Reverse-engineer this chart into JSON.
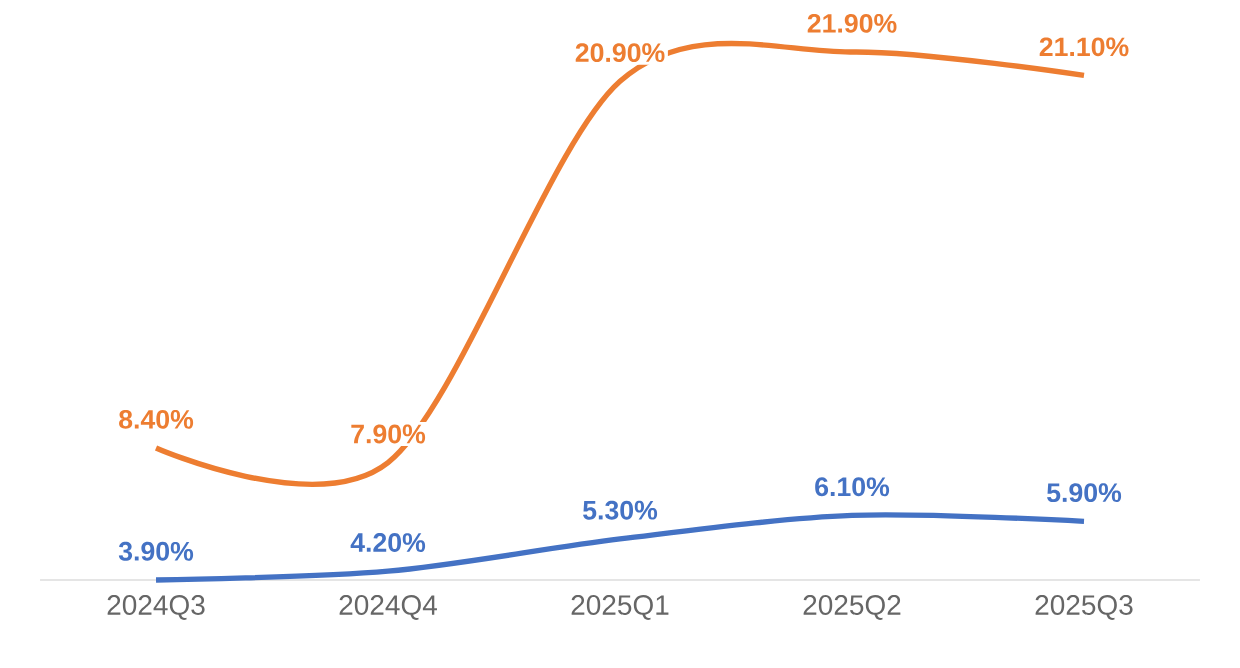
{
  "chart_data": {
    "type": "line",
    "categories": [
      "2024Q3",
      "2024Q4",
      "2025Q1",
      "2025Q2",
      "2025Q3"
    ],
    "series": [
      {
        "color": "#ed7d31",
        "values": [
          8.4,
          7.9,
          20.9,
          21.9,
          21.1
        ],
        "value_labels": [
          "8.40%",
          "7.90%",
          "20.90%",
          "21.90%",
          "21.10%"
        ]
      },
      {
        "color": "#4472c4",
        "values": [
          3.9,
          4.2,
          5.3,
          6.1,
          5.9
        ],
        "value_labels": [
          "3.90%",
          "4.20%",
          "5.30%",
          "6.10%",
          "5.90%"
        ]
      }
    ],
    "tick_labels": "x",
    "grid": false,
    "marker": "none",
    "line_style": "solid"
  }
}
